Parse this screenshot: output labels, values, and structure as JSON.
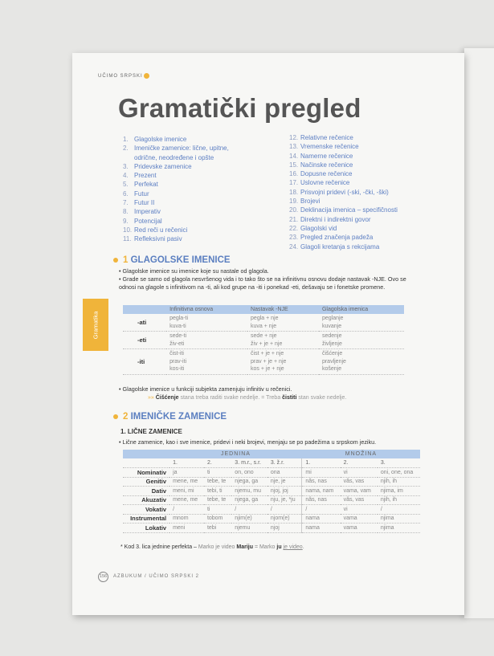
{
  "header": {
    "running_head": "UČIMO SRPSKI",
    "title": "Gramatički pregled"
  },
  "side_tab": "Gramatika",
  "toc_left": [
    [
      "1.",
      "Glagolske imenice"
    ],
    [
      "2.",
      "Imeničke zamenice: lične, upitne,"
    ],
    [
      "",
      "odrične, neodređene i opšte"
    ],
    [
      "3.",
      "Pridevske zamenice"
    ],
    [
      "4.",
      "Prezent"
    ],
    [
      "5.",
      "Perfekat"
    ],
    [
      "6.",
      "Futur"
    ],
    [
      "7.",
      "Futur II"
    ],
    [
      "8.",
      "Imperativ"
    ],
    [
      "9.",
      "Potencijal"
    ],
    [
      "10.",
      "Red reči u rečenici"
    ],
    [
      "11.",
      "Refleksivni pasiv"
    ]
  ],
  "toc_right": [
    [
      "12.",
      "Relativne rečenice"
    ],
    [
      "13.",
      "Vremenske rečenice"
    ],
    [
      "14.",
      "Namerne rečenice"
    ],
    [
      "15.",
      "Načinske rečenice"
    ],
    [
      "16.",
      "Dopusne rečenice"
    ],
    [
      "17.",
      "Uslovne rečenice"
    ],
    [
      "18.",
      "Prisvojni pridevi (-ski, -čki, -ški)"
    ],
    [
      "19.",
      "Brojevi"
    ],
    [
      "20.",
      "Deklinacija imenica – specifičnosti"
    ],
    [
      "21.",
      "Direktni i indirektni govor"
    ],
    [
      "22.",
      "Glagolski vid"
    ],
    [
      "23.",
      "Pregled značenja padeža"
    ],
    [
      "24.",
      "Glagoli kretanja s rekcijama"
    ]
  ],
  "section1": {
    "num": "1",
    "title": "GLAGOLSKE IMENICE",
    "bullets": [
      "• Glagolske imenice su imenice koje su nastale od glagola.",
      "• Grade se samo od glagola nesvršenog vida i to tako što se na infinitivnu osnovu dodaje nastavak -NJE. Ovo se odnosi na glagole s infinitivom na -ti, ali kod grupe na -iti i ponekad -eti, dešavaju se i fonetske promene."
    ],
    "table": {
      "headers": [
        "",
        "Infinitivna osnova",
        "Nastavak -NJE",
        "Glagolska imenica"
      ],
      "rows": [
        {
          "label": "-ati",
          "cells": [
            "pegla-ti\nkuva-ti",
            "pegla + nje\nkuva + nje",
            "peglanje\nkuvanje"
          ]
        },
        {
          "label": "-eti",
          "cells": [
            "sede-ti\nživ-eti",
            "sede + nje\nživ + je + nje",
            "sedenje\nživljenje"
          ]
        },
        {
          "label": "-iti",
          "cells": [
            "čist-iti\nprav-iti\nkos-iti",
            "čist + je + nje\nprav + je + nje\nkos + je + nje",
            "čišćenje\npravljenje\nkošenje"
          ]
        }
      ]
    },
    "bullet_after": "• Glagolske imenice u funkciji subjekta zamenjuju infinitiv u rečenici.",
    "example": {
      "arrow": "»»",
      "w1": "Čišćenje",
      "t1": " stana treba raditi svake nedelje. = Treba ",
      "w2": "čistiti",
      "t2": " stan svake nedelje."
    }
  },
  "section2": {
    "num": "2",
    "title": "IMENIČKE ZAMENICE",
    "subtitle": "1. LIČNE ZAMENICE",
    "bullet": "• Lične zamenice, kao i sve imenice, pridevi i neki brojevi, menjaju se po padežima u srpskom jeziku.",
    "table": {
      "group_headers": [
        "JEDNINA",
        "MNOŽINA"
      ],
      "sub_headers": [
        "1.",
        "2.",
        "3. m.r., s.r.",
        "3. ž.r.",
        "1.",
        "2.",
        "3."
      ],
      "rows": [
        [
          "Nominativ",
          "ja",
          "ti",
          "on, ono",
          "ona",
          "mi",
          "vi",
          "oni, one, ona"
        ],
        [
          "Genitiv",
          "mene, me",
          "tebe, te",
          "njega, ga",
          "nje, je",
          "nâs, nas",
          "vâs, vas",
          "njih, ih"
        ],
        [
          "Dativ",
          "meni, mi",
          "tebi, ti",
          "njemu, mu",
          "njoj, joj",
          "nama, nam",
          "vama, vam",
          "njima, im"
        ],
        [
          "Akuzativ",
          "mene, me",
          "tebe, te",
          "njega, ga",
          "nju, je, *ju",
          "nâs, nas",
          "vâs, vas",
          "njih, ih"
        ],
        [
          "Vokativ",
          "/",
          "ti",
          "/",
          "/",
          "/",
          "vi",
          "/"
        ],
        [
          "Instrumental",
          "mnom",
          "tobom",
          "njim(e)",
          "njom(e)",
          "nama",
          "vama",
          "njima"
        ],
        [
          "Lokativ",
          "meni",
          "tebi",
          "njemu",
          "njoj",
          "nama",
          "vama",
          "njima"
        ]
      ]
    },
    "footnote": {
      "a": "* Kod 3. lica jednine perfekta – ",
      "b": "Marko je video ",
      "c": "Mariju",
      "d": " = Marko ",
      "e": "ju",
      "f": " ",
      "g": "je video",
      "h": "."
    }
  },
  "footer": {
    "page": "156",
    "text": "AZBUKUM / UČIMO SRPSKI 2"
  },
  "colors": {
    "accent": "#f0b43a",
    "blue": "#5b7fc0",
    "table_header": "#b3cbea"
  }
}
